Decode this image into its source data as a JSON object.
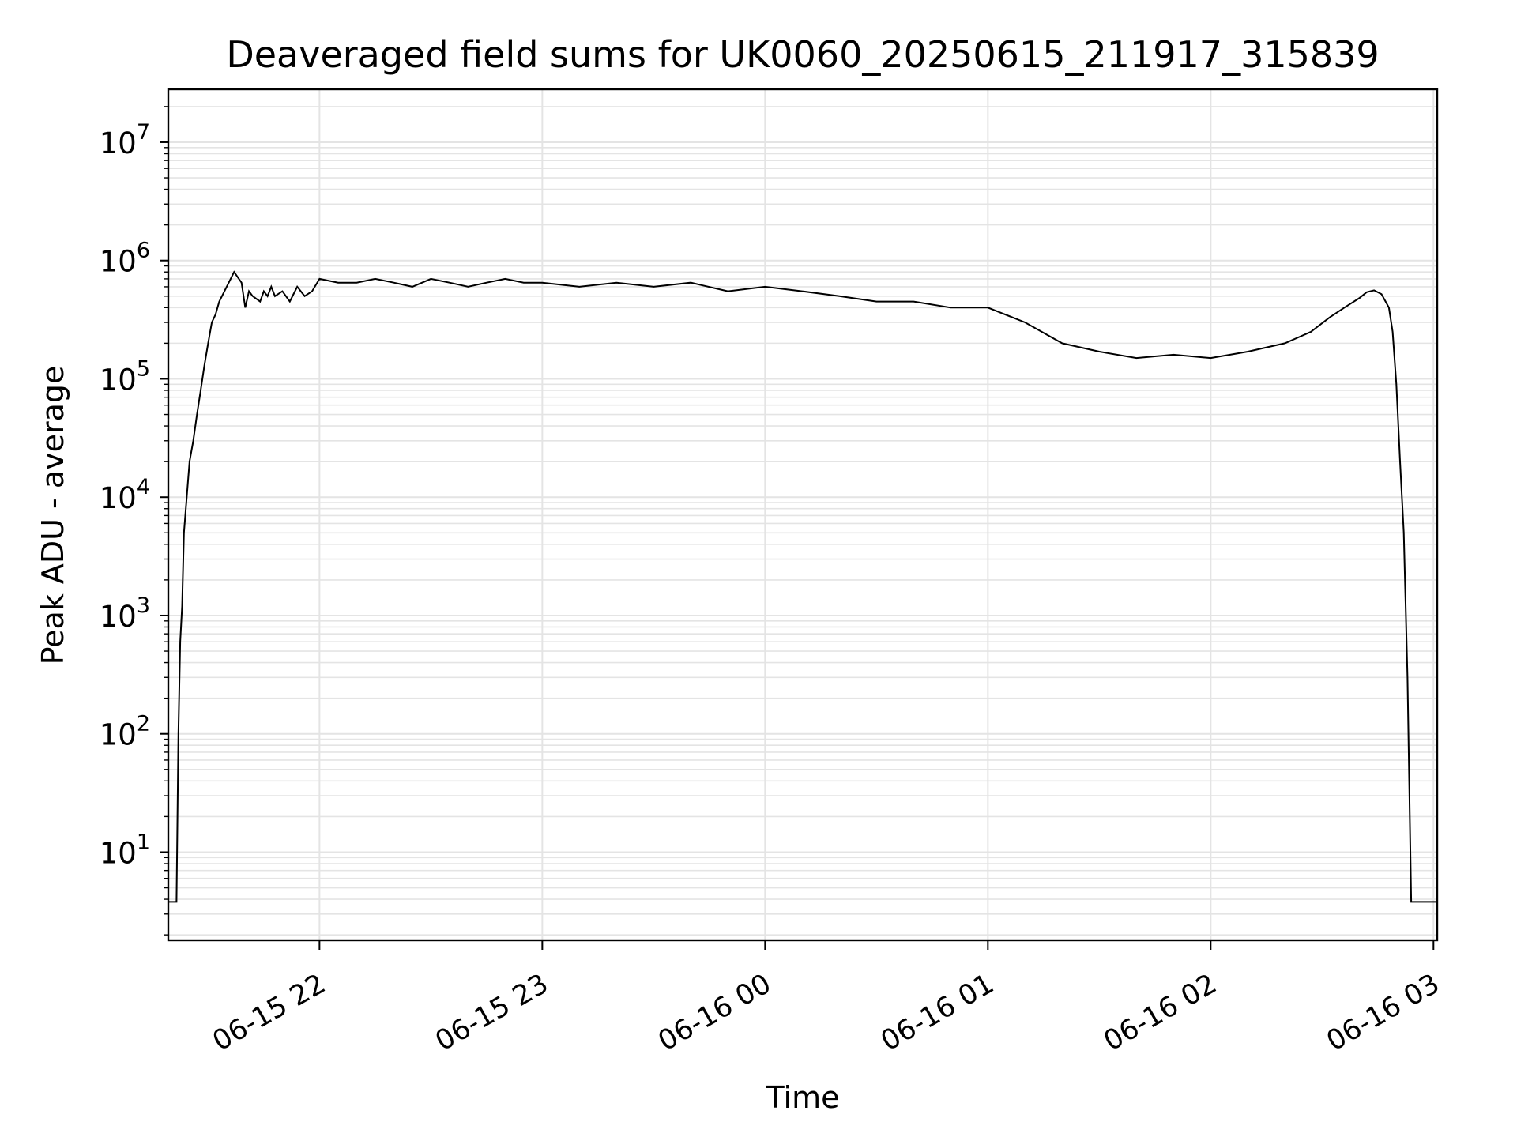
{
  "chart_data": {
    "type": "line",
    "title": "Deaveraged field sums for UK0060_20250615_211917_315839",
    "xlabel": "Time",
    "ylabel": "Peak ADU - average",
    "y_scale": "log",
    "ylim": [
      1.8,
      28000000
    ],
    "xlim": [
      "2025-06-15 21:19:17",
      "2025-06-16 03:01:00"
    ],
    "x_ticks": [
      {
        "value": "2025-06-15 22:00",
        "label": "06-15 22"
      },
      {
        "value": "2025-06-15 23:00",
        "label": "06-15 23"
      },
      {
        "value": "2025-06-16 00:00",
        "label": "06-16 00"
      },
      {
        "value": "2025-06-16 01:00",
        "label": "06-16 01"
      },
      {
        "value": "2025-06-16 02:00",
        "label": "06-16 02"
      },
      {
        "value": "2025-06-16 03:00",
        "label": "06-16 03"
      }
    ],
    "y_ticks": [
      {
        "value": 10,
        "base": "10",
        "exp": "1"
      },
      {
        "value": 100,
        "base": "10",
        "exp": "2"
      },
      {
        "value": 1000,
        "base": "10",
        "exp": "3"
      },
      {
        "value": 10000,
        "base": "10",
        "exp": "4"
      },
      {
        "value": 100000,
        "base": "10",
        "exp": "5"
      },
      {
        "value": 1000000,
        "base": "10",
        "exp": "6"
      },
      {
        "value": 10000000,
        "base": "10",
        "exp": "7"
      }
    ],
    "grid": true,
    "line_color": "#000000",
    "series": [
      {
        "x": [
          "2025-06-15 21:19:17",
          "2025-06-15 21:21:00",
          "2025-06-15 21:21:30",
          "2025-06-15 21:22:00",
          "2025-06-15 21:22:30",
          "2025-06-15 21:23:00",
          "2025-06-15 21:23:30",
          "2025-06-15 21:24:00",
          "2025-06-15 21:25:00",
          "2025-06-15 21:26:00",
          "2025-06-15 21:27:00",
          "2025-06-15 21:28:00",
          "2025-06-15 21:29:00",
          "2025-06-15 21:30:00",
          "2025-06-15 21:31:00",
          "2025-06-15 21:32:00",
          "2025-06-15 21:33:00",
          "2025-06-15 21:35:00",
          "2025-06-15 21:37:00",
          "2025-06-15 21:39:00",
          "2025-06-15 21:40:00",
          "2025-06-15 21:41:00",
          "2025-06-15 21:42:00",
          "2025-06-15 21:44:00",
          "2025-06-15 21:45:00",
          "2025-06-15 21:46:00",
          "2025-06-15 21:47:00",
          "2025-06-15 21:48:00",
          "2025-06-15 21:50:00",
          "2025-06-15 21:52:00",
          "2025-06-15 21:54:00",
          "2025-06-15 21:56:00",
          "2025-06-15 21:58:00",
          "2025-06-15 22:00:00",
          "2025-06-15 22:05:00",
          "2025-06-15 22:10:00",
          "2025-06-15 22:15:00",
          "2025-06-15 22:20:00",
          "2025-06-15 22:25:00",
          "2025-06-15 22:30:00",
          "2025-06-15 22:35:00",
          "2025-06-15 22:40:00",
          "2025-06-15 22:45:00",
          "2025-06-15 22:50:00",
          "2025-06-15 22:55:00",
          "2025-06-15 23:00:00",
          "2025-06-15 23:10:00",
          "2025-06-15 23:20:00",
          "2025-06-15 23:30:00",
          "2025-06-15 23:40:00",
          "2025-06-15 23:50:00",
          "2025-06-16 00:00:00",
          "2025-06-16 00:10:00",
          "2025-06-16 00:20:00",
          "2025-06-16 00:30:00",
          "2025-06-16 00:40:00",
          "2025-06-16 00:50:00",
          "2025-06-16 01:00:00",
          "2025-06-16 01:10:00",
          "2025-06-16 01:20:00",
          "2025-06-16 01:30:00",
          "2025-06-16 01:40:00",
          "2025-06-16 01:50:00",
          "2025-06-16 02:00:00",
          "2025-06-16 02:10:00",
          "2025-06-16 02:20:00",
          "2025-06-16 02:27:00",
          "2025-06-16 02:32:00",
          "2025-06-16 02:36:00",
          "2025-06-16 02:40:00",
          "2025-06-16 02:42:00",
          "2025-06-16 02:44:00",
          "2025-06-16 02:46:00",
          "2025-06-16 02:48:00",
          "2025-06-16 02:49:00",
          "2025-06-16 02:50:00",
          "2025-06-16 02:51:00",
          "2025-06-16 02:52:00",
          "2025-06-16 02:53:00",
          "2025-06-16 02:54:00",
          "2025-06-16 02:55:00",
          "2025-06-16 02:58:00",
          "2025-06-16 03:01:00"
        ],
        "y": [
          3.8,
          3.8,
          3.8,
          100,
          600,
          1200,
          5000,
          8000,
          20000,
          30000,
          50000,
          80000,
          130000,
          200000,
          300000,
          350000,
          450000,
          600000,
          800000,
          650000,
          400000,
          550000,
          500000,
          450000,
          550000,
          500000,
          600000,
          500000,
          550000,
          450000,
          600000,
          500000,
          550000,
          700000,
          650000,
          650000,
          700000,
          650000,
          600000,
          700000,
          650000,
          600000,
          650000,
          700000,
          650000,
          650000,
          600000,
          650000,
          600000,
          650000,
          550000,
          600000,
          550000,
          500000,
          450000,
          450000,
          400000,
          400000,
          300000,
          200000,
          170000,
          150000,
          160000,
          150000,
          170000,
          200000,
          250000,
          330000,
          400000,
          480000,
          540000,
          560000,
          520000,
          400000,
          250000,
          90000,
          20000,
          5000,
          300,
          3.8,
          3.8,
          3.8,
          3.8
        ]
      }
    ]
  }
}
